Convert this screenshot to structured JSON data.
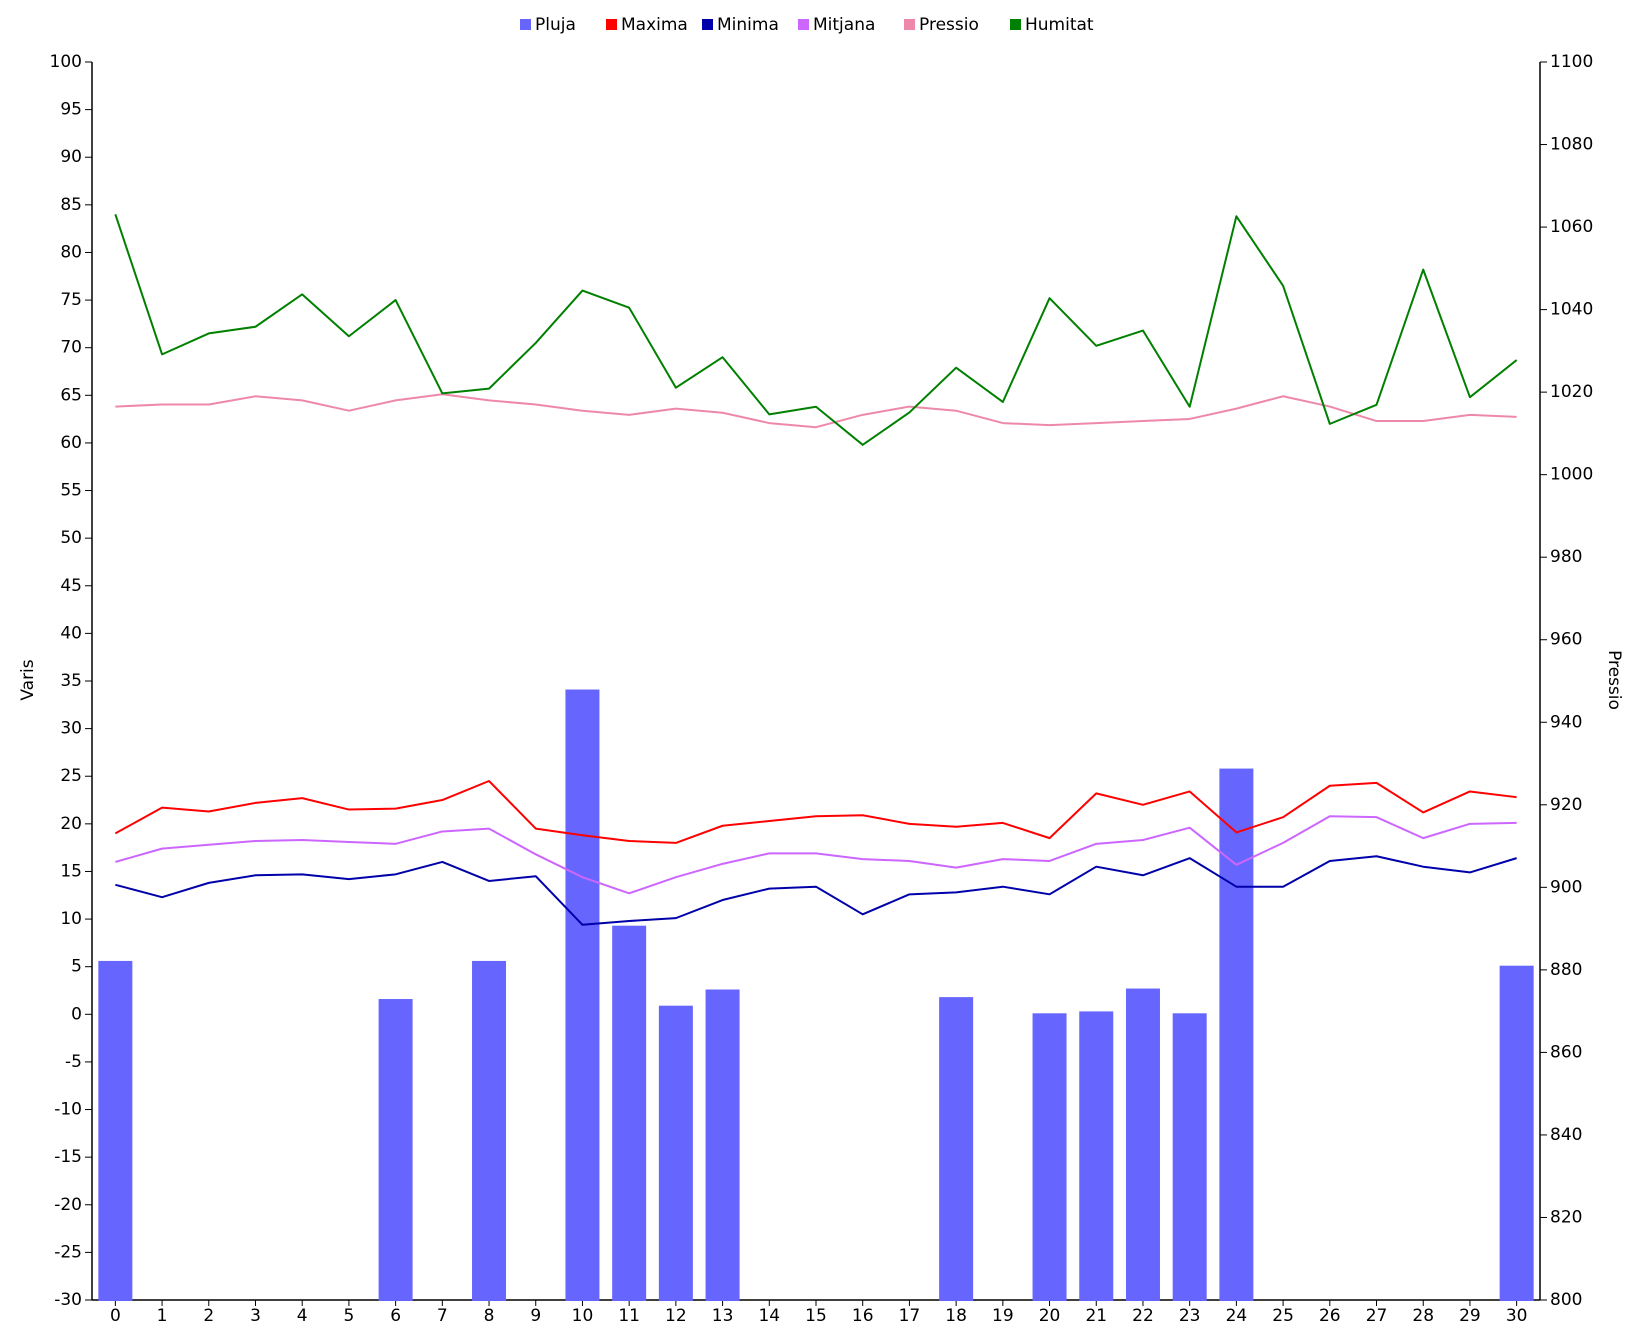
{
  "chart_data": {
    "type": "combo",
    "y_label": "Varis",
    "y2_label": "Pressio",
    "categories": [
      "0",
      "1",
      "2",
      "3",
      "4",
      "5",
      "6",
      "7",
      "8",
      "9",
      "10",
      "11",
      "12",
      "13",
      "14",
      "15",
      "16",
      "17",
      "18",
      "19",
      "20",
      "21",
      "22",
      "23",
      "24",
      "25",
      "26",
      "27",
      "28",
      "29",
      "30"
    ],
    "ylim": [
      -30,
      100
    ],
    "yticks": [
      100,
      95,
      90,
      85,
      80,
      75,
      70,
      65,
      60,
      55,
      50,
      45,
      40,
      35,
      30,
      25,
      20,
      15,
      10,
      5,
      0,
      -5,
      -10,
      -15,
      -20,
      -25,
      -30
    ],
    "y2lim": [
      800,
      1100
    ],
    "y2ticks": [
      1100,
      1080,
      1060,
      1040,
      1020,
      1000,
      980,
      960,
      940,
      920,
      900,
      880,
      860,
      840,
      820,
      800
    ],
    "legend": "top",
    "series": [
      {
        "name": "Pluja",
        "type": "bar",
        "color": "#6666ff",
        "values": [
          5.5,
          -30,
          -30,
          -30,
          -30,
          -30,
          1.5,
          -30,
          5.5,
          -30,
          34,
          9.2,
          0.8,
          2.5,
          -30,
          -30,
          -30,
          -30,
          1.7,
          -30,
          0,
          0.2,
          2.6,
          0,
          25.7,
          -30,
          -30,
          -30,
          -30,
          -30,
          5
        ]
      },
      {
        "name": "Maxima",
        "type": "line",
        "color": "#ff0000",
        "values": [
          19,
          21.7,
          21.3,
          22.2,
          22.7,
          21.5,
          21.6,
          22.5,
          24.5,
          19.5,
          18.8,
          18.2,
          18,
          19.8,
          20.3,
          20.8,
          20.9,
          20,
          19.7,
          20.1,
          18.5,
          23.2,
          22,
          23.4,
          19.1,
          20.7,
          24,
          24.3,
          21.2,
          23.4,
          22.8
        ]
      },
      {
        "name": "Minima",
        "type": "line",
        "color": "#0000aa",
        "values": [
          13.6,
          12.3,
          13.8,
          14.6,
          14.7,
          14.2,
          14.7,
          16,
          14,
          14.5,
          9.4,
          9.8,
          10.1,
          12,
          13.2,
          13.4,
          10.5,
          12.6,
          12.8,
          13.4,
          12.6,
          15.5,
          14.6,
          16.4,
          13.4,
          13.4,
          16.1,
          16.6,
          15.5,
          14.9,
          16.4
        ]
      },
      {
        "name": "Mitjana",
        "type": "line",
        "color": "#cc66ff",
        "values": [
          16,
          17.4,
          17.8,
          18.2,
          18.3,
          18.1,
          17.9,
          19.2,
          19.5,
          16.8,
          14.4,
          12.7,
          14.4,
          15.8,
          16.9,
          16.9,
          16.3,
          16.1,
          15.4,
          16.3,
          16.1,
          17.9,
          18.3,
          19.6,
          15.7,
          18,
          20.8,
          20.7,
          18.5,
          20,
          20.1
        ]
      },
      {
        "name": "Pressio",
        "type": "line",
        "axis": "y2",
        "color": "#ee88aa",
        "values": [
          1016.5,
          1017,
          1017,
          1019,
          1018,
          1015.5,
          1018,
          1019.5,
          1018,
          1017,
          1015.5,
          1014.5,
          1016,
          1015,
          1012.5,
          1011.5,
          1014.5,
          1016.5,
          1015.5,
          1012.5,
          1012,
          1012.5,
          1013,
          1013.5,
          1016,
          1019,
          1016.5,
          1013,
          1013,
          1014.5,
          1014
        ]
      },
      {
        "name": "Humitat",
        "type": "line",
        "color": "#008000",
        "values": [
          84,
          69.3,
          71.5,
          72.2,
          75.6,
          71.2,
          75,
          65.2,
          65.7,
          70.5,
          76,
          74.2,
          65.8,
          69,
          63,
          63.8,
          59.8,
          63.2,
          67.9,
          64.3,
          75.2,
          70.2,
          71.8,
          63.8,
          83.8,
          76.5,
          62,
          64,
          78.2,
          64.8,
          68.7
        ]
      }
    ]
  }
}
